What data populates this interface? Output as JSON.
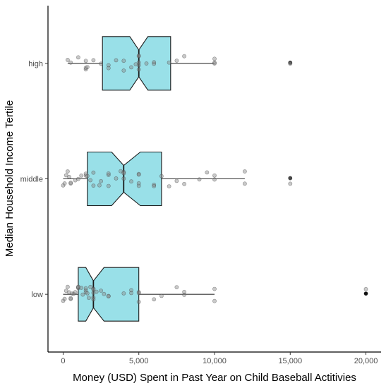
{
  "chart_data": {
    "type": "boxplot",
    "orientation": "horizontal",
    "notched": true,
    "title": "",
    "xlabel": "Money (USD) Spent in Past Year on Child Baseball Actitivies",
    "ylabel": "Median Household Income Tertile",
    "xlim": [
      -1000,
      21000
    ],
    "x_ticks": [
      0,
      5000,
      10000,
      15000,
      20000
    ],
    "x_tick_labels": [
      "0",
      "5,000",
      "10,000",
      "15,000",
      "20,000"
    ],
    "categories": [
      "low",
      "middle",
      "high"
    ],
    "box_color": "#99e0e8",
    "box_edge_color": "#1a1a1a",
    "point_color": "#888888",
    "outlier_color": "#111111",
    "grid": false,
    "boxes": [
      {
        "category": "low",
        "whisker_low": 0,
        "q1": 1000,
        "notch_low": 1500,
        "median": 2000,
        "notch_high": 2700,
        "q3": 5000,
        "whisker_high": 10000,
        "outliers": [
          20000
        ]
      },
      {
        "category": "middle",
        "whisker_low": 0,
        "q1": 1600,
        "notch_low": 3200,
        "median": 4000,
        "notch_high": 5100,
        "q3": 6500,
        "whisker_high": 12000,
        "outliers": [
          15000
        ]
      },
      {
        "category": "high",
        "whisker_low": 300,
        "q1": 2600,
        "notch_low": 4400,
        "median": 5000,
        "notch_high": 5600,
        "q3": 7100,
        "whisker_high": 10000,
        "outliers": [
          15000
        ]
      }
    ],
    "jitter_points": [
      {
        "category": "low",
        "values": [
          0,
          100,
          200,
          300,
          400,
          500,
          500,
          600,
          700,
          800,
          1000,
          1000,
          1000,
          1200,
          1300,
          1500,
          1500,
          1500,
          1600,
          1700,
          1800,
          2000,
          2000,
          2000,
          2000,
          2000,
          2200,
          2500,
          2700,
          3000,
          3000,
          4000,
          4500,
          4500,
          5000,
          5000,
          5000,
          6000,
          6500,
          7500,
          8000,
          8000,
          10000,
          10000,
          20000
        ]
      },
      {
        "category": "middle",
        "values": [
          0,
          100,
          200,
          300,
          400,
          500,
          500,
          800,
          1000,
          1200,
          1500,
          1500,
          1600,
          1800,
          2000,
          2000,
          2400,
          2500,
          3000,
          3000,
          3000,
          3500,
          3800,
          4000,
          4000,
          4000,
          4500,
          5000,
          5000,
          5000,
          5000,
          6000,
          6000,
          6500,
          7000,
          7500,
          8000,
          9000,
          9500,
          10000,
          10000,
          12000,
          12000,
          15000,
          15000
        ]
      },
      {
        "category": "high",
        "values": [
          300,
          500,
          1000,
          1500,
          1500,
          1500,
          1600,
          2000,
          2500,
          3000,
          3000,
          3500,
          4000,
          4000,
          4500,
          4800,
          5000,
          5000,
          5000,
          5000,
          5000,
          5500,
          6000,
          6000,
          7000,
          7500,
          8000,
          10000,
          10000,
          10000,
          15000,
          15000
        ]
      }
    ]
  }
}
